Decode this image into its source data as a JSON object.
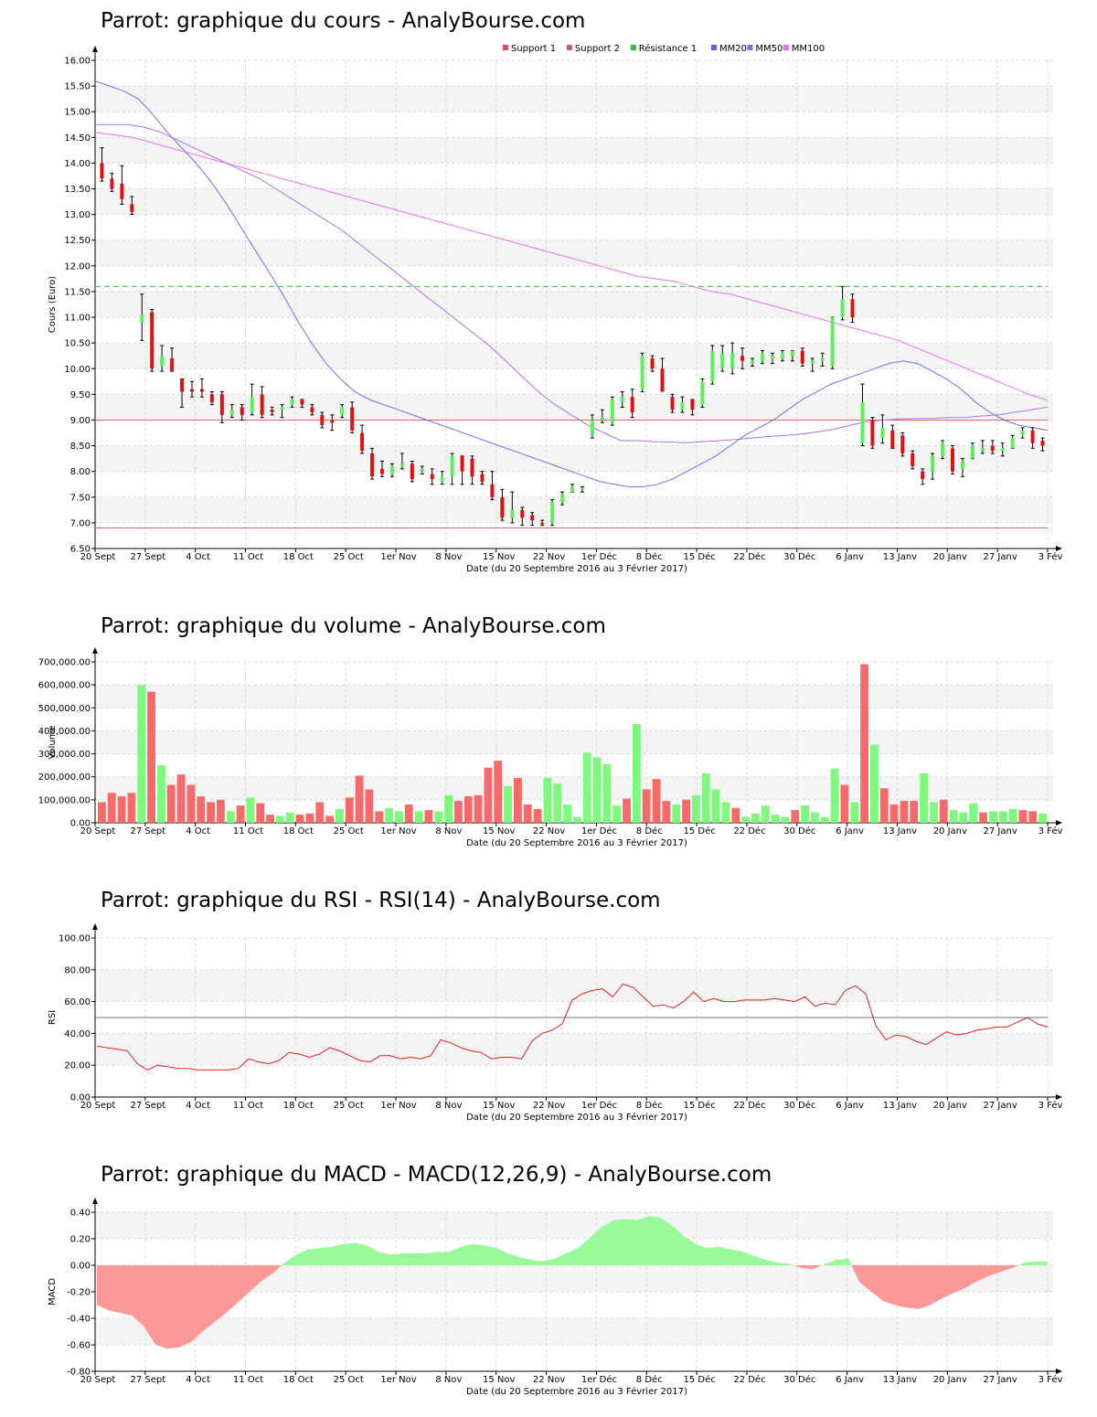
{
  "colors": {
    "up": "#5df05d",
    "down": "#e01010",
    "vol_up": "#7dfa7d",
    "vol_down": "#f76a6a",
    "support": "#e06060",
    "resistance": "#30c030",
    "mm20": "#7070f0",
    "mm50": "#b070e0",
    "mm100": "#f070f0",
    "rsi": "#e02020",
    "rsi_ref": "#707070",
    "macd_pos": "#98fa98",
    "macd_neg": "#fa9898",
    "band": "#f4f4f4",
    "grid": "#d8d8d8"
  },
  "x_axis": {
    "ticks": [
      "20 Sept",
      "27 Sept",
      "4 Oct",
      "11 Oct",
      "18 Oct",
      "25 Oct",
      "1er Nov",
      "8 Nov",
      "15 Nov",
      "22 Nov",
      "1er Déc",
      "8 Déc",
      "15 Déc",
      "22 Déc",
      "30 Déc",
      "6 Janv",
      "13 Janv",
      "20 Janv",
      "27 Janv",
      "3 Fév"
    ],
    "label": "Date (du 20 Septembre 2016 au 3 Février 2017)"
  },
  "price": {
    "title": "Parrot: graphique du cours - AnalyBourse.com",
    "ylabel": "Cours (Euro)",
    "legend": [
      {
        "label": "Support 1",
        "color": "#e05050"
      },
      {
        "label": "Support 2",
        "color": "#c06060"
      },
      {
        "label": "Résistance 1",
        "color": "#30c030"
      },
      {
        "label": "MM20",
        "color": "#6060f0"
      },
      {
        "label": "MM50",
        "color": "#a060e0"
      },
      {
        "label": "MM100",
        "color": "#f070f0"
      }
    ]
  },
  "volume": {
    "title": "Parrot: graphique du volume - AnalyBourse.com",
    "ylabel": "Volume"
  },
  "rsi": {
    "title": "Parrot: graphique du RSI - RSI(14) - AnalyBourse.com",
    "ylabel": "RSI"
  },
  "macd": {
    "title": "Parrot: graphique du MACD - MACD(12,26,9) - AnalyBourse.com",
    "ylabel": "MACD"
  },
  "chart_data": [
    {
      "type": "candlestick",
      "title": "Parrot: graphique du cours - AnalyBourse.com",
      "xlabel": "Date (du 20 Septembre 2016 au 3 Février 2017)",
      "ylabel": "Cours (Euro)",
      "ylim": [
        6.5,
        16.0
      ],
      "yticks": [
        "6.50",
        "7.00",
        "7.50",
        "8.00",
        "8.50",
        "9.00",
        "9.50",
        "10.00",
        "10.50",
        "11.00",
        "11.50",
        "12.00",
        "12.50",
        "13.00",
        "13.50",
        "14.00",
        "14.50",
        "15.00",
        "15.50",
        "16.00"
      ],
      "support1": 6.9,
      "support2": 9.0,
      "resistance1": 11.6,
      "ohlc": [
        [
          14.0,
          14.3,
          13.65,
          13.7
        ],
        [
          13.7,
          13.8,
          13.45,
          13.5
        ],
        [
          13.6,
          13.95,
          13.2,
          13.3
        ],
        [
          13.2,
          13.35,
          13.0,
          13.05
        ],
        [
          10.9,
          11.45,
          10.55,
          11.05
        ],
        [
          11.1,
          11.15,
          9.95,
          10.0
        ],
        [
          10.05,
          10.45,
          9.95,
          10.25
        ],
        [
          10.2,
          10.4,
          9.95,
          9.95
        ],
        [
          9.8,
          9.8,
          9.25,
          9.55
        ],
        [
          9.6,
          9.75,
          9.45,
          9.55
        ],
        [
          9.6,
          9.8,
          9.45,
          9.55
        ],
        [
          9.5,
          9.55,
          9.3,
          9.35
        ],
        [
          9.5,
          9.55,
          8.95,
          9.1
        ],
        [
          9.1,
          9.3,
          9.05,
          9.2
        ],
        [
          9.25,
          9.3,
          9.0,
          9.1
        ],
        [
          9.15,
          9.7,
          9.1,
          9.45
        ],
        [
          9.5,
          9.65,
          9.05,
          9.1
        ],
        [
          9.2,
          9.25,
          9.1,
          9.15
        ],
        [
          9.2,
          9.3,
          9.05,
          9.25
        ],
        [
          9.3,
          9.45,
          9.25,
          9.4
        ],
        [
          9.4,
          9.4,
          9.25,
          9.3
        ],
        [
          9.25,
          9.3,
          9.1,
          9.15
        ],
        [
          9.1,
          9.15,
          8.85,
          8.9
        ],
        [
          9.0,
          9.1,
          8.8,
          8.95
        ],
        [
          9.1,
          9.3,
          9.05,
          9.25
        ],
        [
          9.25,
          9.35,
          8.75,
          8.8
        ],
        [
          8.75,
          8.9,
          8.35,
          8.4
        ],
        [
          8.35,
          8.45,
          7.85,
          7.9
        ],
        [
          8.05,
          8.2,
          7.9,
          7.95
        ],
        [
          7.95,
          8.15,
          7.9,
          8.1
        ],
        [
          8.1,
          8.35,
          8.05,
          8.15
        ],
        [
          8.15,
          8.2,
          7.8,
          7.85
        ],
        [
          8.0,
          8.1,
          7.95,
          8.05
        ],
        [
          7.95,
          8.05,
          7.75,
          7.85
        ],
        [
          7.8,
          8.0,
          7.75,
          7.9
        ],
        [
          7.9,
          8.35,
          7.75,
          8.3
        ],
        [
          8.3,
          8.3,
          7.75,
          8.0
        ],
        [
          8.25,
          8.3,
          7.75,
          7.9
        ],
        [
          7.95,
          8.0,
          7.75,
          7.8
        ],
        [
          7.75,
          8.0,
          7.45,
          7.5
        ],
        [
          7.5,
          7.65,
          7.05,
          7.1
        ],
        [
          7.1,
          7.6,
          7.0,
          7.25
        ],
        [
          7.25,
          7.3,
          6.95,
          7.1
        ],
        [
          7.15,
          7.2,
          6.95,
          7.05
        ],
        [
          7.0,
          7.05,
          6.95,
          6.98
        ],
        [
          7.0,
          7.45,
          6.95,
          7.4
        ],
        [
          7.4,
          7.6,
          7.35,
          7.55
        ],
        [
          7.6,
          7.75,
          7.6,
          7.7
        ],
        [
          7.65,
          7.7,
          7.6,
          7.68
        ],
        [
          8.7,
          9.1,
          8.65,
          9.0
        ],
        [
          9.0,
          9.2,
          8.95,
          9.05
        ],
        [
          8.95,
          9.45,
          8.9,
          9.4
        ],
        [
          9.35,
          9.55,
          9.25,
          9.45
        ],
        [
          9.45,
          9.6,
          9.05,
          9.15
        ],
        [
          9.6,
          10.3,
          9.55,
          10.25
        ],
        [
          10.2,
          10.25,
          9.95,
          10.0
        ],
        [
          10.0,
          10.2,
          9.6,
          9.55
        ],
        [
          9.45,
          9.5,
          9.15,
          9.2
        ],
        [
          9.2,
          9.45,
          9.15,
          9.35
        ],
        [
          9.4,
          9.4,
          9.1,
          9.2
        ],
        [
          9.3,
          9.8,
          9.25,
          9.75
        ],
        [
          9.75,
          10.45,
          9.7,
          10.35
        ],
        [
          10.0,
          10.45,
          9.95,
          10.3
        ],
        [
          10.0,
          10.5,
          9.9,
          10.3
        ],
        [
          10.25,
          10.4,
          10.0,
          10.15
        ],
        [
          10.1,
          10.2,
          10.05,
          10.15
        ],
        [
          10.15,
          10.35,
          10.1,
          10.3
        ],
        [
          10.2,
          10.3,
          10.1,
          10.25
        ],
        [
          10.2,
          10.35,
          10.15,
          10.3
        ],
        [
          10.25,
          10.35,
          10.15,
          10.35
        ],
        [
          10.35,
          10.4,
          10.05,
          10.1
        ],
        [
          10.1,
          10.2,
          9.95,
          10.15
        ],
        [
          10.15,
          10.3,
          10.05,
          10.2
        ],
        [
          10.05,
          11.0,
          10.0,
          11.0
        ],
        [
          11.0,
          11.6,
          10.95,
          11.35
        ],
        [
          11.35,
          11.45,
          10.9,
          11.0
        ],
        [
          8.55,
          9.7,
          8.5,
          9.35
        ],
        [
          9.0,
          9.05,
          8.45,
          8.5
        ],
        [
          8.65,
          9.1,
          8.55,
          8.85
        ],
        [
          8.8,
          8.9,
          8.45,
          8.45
        ],
        [
          8.7,
          8.75,
          8.3,
          8.35
        ],
        [
          8.35,
          8.4,
          8.05,
          8.1
        ],
        [
          8.0,
          8.05,
          7.75,
          7.85
        ],
        [
          8.0,
          8.35,
          7.85,
          8.3
        ],
        [
          8.3,
          8.6,
          8.25,
          8.55
        ],
        [
          8.45,
          8.5,
          7.95,
          8.0
        ],
        [
          8.05,
          8.25,
          7.9,
          8.2
        ],
        [
          8.25,
          8.55,
          8.25,
          8.5
        ],
        [
          8.4,
          8.6,
          8.35,
          8.45
        ],
        [
          8.5,
          8.6,
          8.35,
          8.4
        ],
        [
          8.4,
          8.55,
          8.3,
          8.45
        ],
        [
          8.45,
          8.7,
          8.45,
          8.65
        ],
        [
          8.7,
          8.85,
          8.65,
          8.8
        ],
        [
          8.8,
          8.85,
          8.45,
          8.55
        ],
        [
          8.6,
          8.65,
          8.4,
          8.5
        ]
      ],
      "mm20": [
        15.6,
        15.5,
        15.4,
        15.25,
        14.95,
        14.6,
        14.3,
        14.0,
        13.65,
        13.25,
        12.8,
        12.35,
        11.9,
        11.45,
        10.95,
        10.5,
        10.1,
        9.8,
        9.55,
        9.4,
        9.3,
        9.2,
        9.1,
        9.0,
        8.9,
        8.8,
        8.7,
        8.6,
        8.5,
        8.4,
        8.3,
        8.2,
        8.1,
        8.0,
        7.9,
        7.8,
        7.75,
        7.7,
        7.7,
        7.75,
        7.85,
        8.0,
        8.15,
        8.3,
        8.5,
        8.7,
        8.85,
        9.0,
        9.2,
        9.4,
        9.55,
        9.7,
        9.8,
        9.9,
        10.0,
        10.1,
        10.15,
        10.1,
        9.95,
        9.8,
        9.6,
        9.35,
        9.15,
        9.0,
        8.9,
        8.85,
        8.8
      ],
      "mm50": [
        14.75,
        14.75,
        14.75,
        14.7,
        14.6,
        14.45,
        14.3,
        14.15,
        14.0,
        13.85,
        13.7,
        13.5,
        13.3,
        13.1,
        12.9,
        12.7,
        12.45,
        12.2,
        11.95,
        11.7,
        11.45,
        11.2,
        10.95,
        10.7,
        10.45,
        10.15,
        9.85,
        9.55,
        9.3,
        9.1,
        8.9,
        8.75,
        8.6,
        8.6,
        8.58,
        8.57,
        8.56,
        8.58,
        8.6,
        8.62,
        8.65,
        8.68,
        8.7,
        8.73,
        8.77,
        8.82,
        8.9,
        8.97,
        9.0,
        9.02,
        9.03,
        9.03,
        9.05,
        9.05,
        9.08,
        9.1,
        9.15,
        9.2,
        9.25
      ],
      "mm100": [
        14.6,
        14.55,
        14.5,
        14.4,
        14.3,
        14.2,
        14.1,
        14.0,
        13.9,
        13.8,
        13.7,
        13.6,
        13.5,
        13.4,
        13.3,
        13.2,
        13.1,
        13.0,
        12.9,
        12.8,
        12.7,
        12.6,
        12.5,
        12.4,
        12.3,
        12.2,
        12.1,
        12.0,
        11.9,
        11.8,
        11.75,
        11.7,
        11.6,
        11.5,
        11.45,
        11.35,
        11.25,
        11.15,
        11.05,
        10.95,
        10.85,
        10.75,
        10.65,
        10.55,
        10.4,
        10.25,
        10.1,
        9.95,
        9.8,
        9.65,
        9.5,
        9.38
      ]
    },
    {
      "type": "bar",
      "title": "Parrot: graphique du volume - AnalyBourse.com",
      "xlabel": "Date (du 20 Septembre 2016 au 3 Février 2017)",
      "ylabel": "Volume",
      "ylim": [
        0,
        700000
      ],
      "yticks": [
        "0.00",
        "100,000.00",
        "200,000.00",
        "300,000.00",
        "400,000.00",
        "500,000.00",
        "600,000.00",
        "700,000.00"
      ],
      "values": [
        90000,
        130000,
        115000,
        130000,
        600000,
        570000,
        250000,
        165000,
        210000,
        165000,
        115000,
        90000,
        100000,
        50000,
        75000,
        110000,
        85000,
        35000,
        30000,
        45000,
        35000,
        40000,
        90000,
        30000,
        60000,
        110000,
        205000,
        145000,
        50000,
        65000,
        50000,
        80000,
        50000,
        55000,
        50000,
        120000,
        95000,
        115000,
        120000,
        240000,
        270000,
        160000,
        195000,
        80000,
        60000,
        195000,
        170000,
        80000,
        25000,
        305000,
        285000,
        255000,
        75000,
        105000,
        430000,
        145000,
        190000,
        95000,
        80000,
        100000,
        120000,
        215000,
        145000,
        90000,
        65000,
        25000,
        40000,
        75000,
        35000,
        25000,
        55000,
        75000,
        45000,
        25000,
        235000,
        165000,
        90000,
        690000,
        340000,
        150000,
        80000,
        95000,
        95000,
        215000,
        90000,
        100000,
        55000,
        45000,
        85000,
        45000,
        50000,
        50000,
        60000,
        55000,
        50000,
        40000
      ]
    },
    {
      "type": "line",
      "title": "Parrot: graphique du RSI - RSI(14) - AnalyBourse.com",
      "xlabel": "Date (du 20 Septembre 2016 au 3 Février 2017)",
      "ylabel": "RSI",
      "ylim": [
        0,
        100
      ],
      "yticks": [
        "0.00",
        "20.00",
        "40.00",
        "60.00",
        "80.00",
        "100.00"
      ],
      "reference": 50,
      "values": [
        32,
        31,
        30,
        29,
        21,
        17,
        20,
        19,
        18,
        18,
        17,
        17,
        17,
        17,
        18,
        24,
        22,
        21,
        23,
        28,
        27,
        25,
        27,
        31,
        29,
        26,
        23,
        22,
        26,
        26,
        24,
        25,
        24,
        26,
        36,
        34,
        31,
        29,
        28,
        24,
        25,
        25,
        24,
        35,
        40,
        42,
        46,
        61,
        65,
        67,
        68,
        63,
        71,
        69,
        63,
        57,
        58,
        56,
        60,
        66,
        60,
        62,
        60,
        60,
        61,
        61,
        61,
        62,
        61,
        60,
        63,
        57,
        59,
        58,
        67,
        70,
        65,
        45,
        36,
        39,
        38,
        35,
        33,
        37,
        41,
        39,
        40,
        42,
        43,
        44,
        44,
        47,
        50,
        46,
        44
      ]
    },
    {
      "type": "area",
      "title": "Parrot: graphique du MACD - MACD(12,26,9) - AnalyBourse.com",
      "xlabel": "Date (du 20 Septembre 2016 au 3 Février 2017)",
      "ylabel": "MACD",
      "ylim": [
        -0.8,
        0.4
      ],
      "yticks": [
        "-0.80",
        "-0.60",
        "-0.40",
        "-0.20",
        "0.00",
        "0.20",
        "0.40"
      ],
      "values": [
        -0.3,
        -0.34,
        -0.36,
        -0.38,
        -0.46,
        -0.6,
        -0.63,
        -0.62,
        -0.58,
        -0.5,
        -0.43,
        -0.36,
        -0.28,
        -0.2,
        -0.12,
        -0.06,
        0.02,
        0.08,
        0.12,
        0.13,
        0.14,
        0.16,
        0.17,
        0.15,
        0.1,
        0.08,
        0.09,
        0.09,
        0.09,
        0.1,
        0.1,
        0.14,
        0.16,
        0.15,
        0.13,
        0.09,
        0.06,
        0.04,
        0.03,
        0.05,
        0.09,
        0.13,
        0.21,
        0.29,
        0.34,
        0.35,
        0.34,
        0.37,
        0.36,
        0.3,
        0.22,
        0.16,
        0.13,
        0.14,
        0.12,
        0.1,
        0.07,
        0.04,
        0.02,
        0.01,
        -0.02,
        -0.03,
        0.01,
        0.04,
        0.05,
        -0.13,
        -0.2,
        -0.27,
        -0.3,
        -0.32,
        -0.33,
        -0.3,
        -0.25,
        -0.21,
        -0.17,
        -0.12,
        -0.08,
        -0.05,
        -0.02,
        0.02,
        0.03,
        0.03
      ]
    }
  ]
}
